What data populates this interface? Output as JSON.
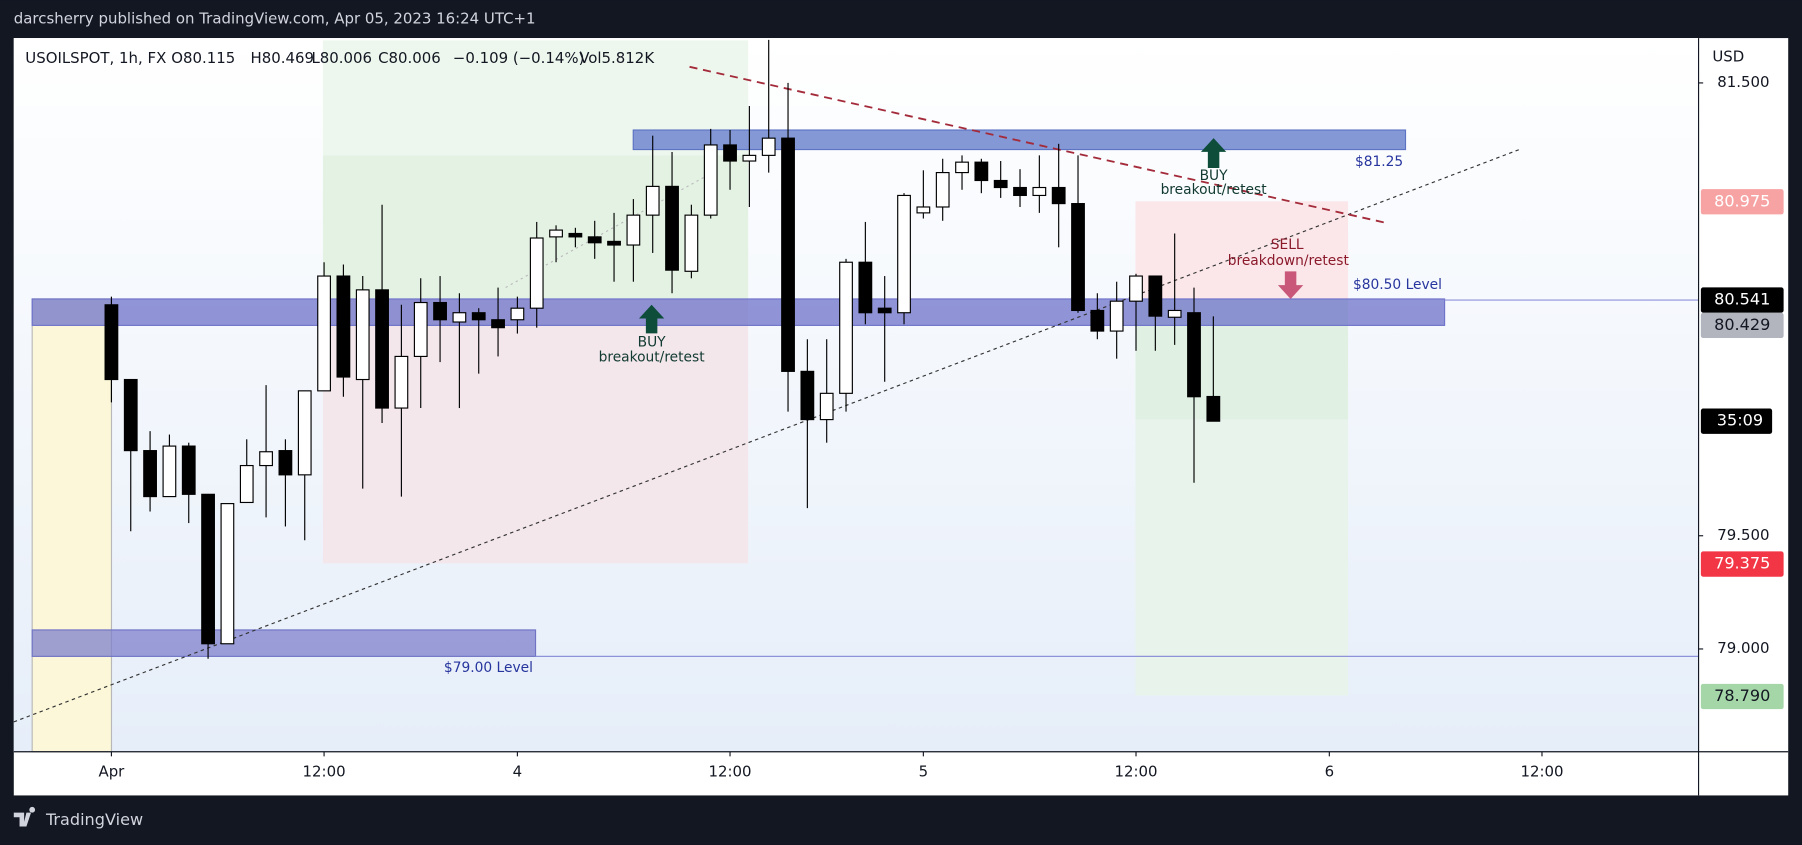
{
  "header": {
    "publisher": "darcsherry published on TradingView.com, Apr 05, 2023 16:24 UTC+1"
  },
  "chart_data": {
    "type": "candlestick",
    "legend": [
      "USOILSPOT, 1h, FX",
      "O80.115",
      "H80.469",
      "L80.006",
      "C80.006",
      "−0.109 (−0.14%)",
      "Vol5.812K"
    ],
    "open": [
      80.52,
      80.19,
      79.876,
      79.673,
      79.896,
      79.683,
      79.023,
      79.647,
      79.81,
      79.876,
      79.769,
      80.14,
      80.647,
      80.19,
      80.586,
      80.064,
      80.292,
      80.53,
      80.444,
      80.485,
      80.454,
      80.454,
      80.505,
      80.82,
      80.835,
      80.82,
      80.8,
      80.784,
      80.916,
      81.043,
      80.668,
      80.916,
      81.226,
      81.155,
      81.18,
      81.256,
      80.226,
      80.013,
      80.129,
      80.708,
      80.505,
      80.485,
      80.926,
      80.952,
      81.104,
      81.15,
      81.069,
      81.038,
      81.003,
      81.038,
      80.967,
      80.495,
      80.404,
      80.536,
      80.647,
      80.465,
      80.485,
      80.115
    ],
    "high": [
      80.556,
      80.19,
      79.962,
      79.947,
      79.911,
      79.683,
      79.642,
      79.926,
      80.165,
      79.926,
      80.14,
      80.708,
      80.698,
      80.647,
      80.962,
      80.52,
      80.637,
      80.647,
      80.571,
      80.505,
      80.596,
      80.556,
      80.886,
      80.871,
      80.86,
      80.891,
      80.926,
      80.987,
      81.267,
      81.195,
      80.962,
      81.297,
      81.292,
      81.398,
      81.69,
      81.5,
      80.368,
      80.368,
      80.723,
      80.886,
      80.647,
      81.013,
      81.114,
      81.165,
      81.18,
      81.165,
      81.155,
      81.119,
      81.18,
      81.231,
      81.18,
      80.571,
      80.622,
      80.657,
      80.647,
      80.835,
      80.596,
      80.469
    ],
    "low": [
      80.089,
      79.52,
      79.607,
      79.673,
      79.556,
      78.957,
      79.023,
      79.647,
      79.581,
      79.541,
      79.48,
      80.14,
      80.114,
      79.708,
      79.998,
      79.673,
      80.064,
      80.267,
      80.064,
      80.216,
      80.292,
      80.393,
      80.419,
      80.708,
      80.774,
      80.723,
      80.622,
      80.622,
      80.749,
      80.571,
      80.637,
      80.901,
      81.028,
      80.952,
      81.104,
      80.048,
      79.622,
      79.911,
      80.048,
      80.434,
      80.18,
      80.434,
      80.901,
      80.891,
      81.028,
      81.013,
      80.992,
      80.952,
      80.926,
      80.774,
      80.485,
      80.368,
      80.282,
      80.317,
      80.317,
      80.343,
      79.734,
      80.006
    ],
    "close": [
      80.19,
      79.876,
      79.673,
      79.896,
      79.683,
      79.023,
      79.642,
      79.81,
      79.871,
      79.769,
      80.14,
      80.647,
      80.201,
      80.586,
      80.064,
      80.292,
      80.53,
      80.454,
      80.485,
      80.454,
      80.419,
      80.505,
      80.815,
      80.85,
      80.82,
      80.794,
      80.784,
      80.916,
      81.043,
      80.673,
      80.916,
      81.226,
      81.155,
      81.18,
      81.256,
      80.226,
      80.013,
      80.129,
      80.708,
      80.485,
      80.485,
      81.003,
      80.952,
      81.104,
      81.15,
      81.069,
      81.038,
      81.003,
      81.038,
      80.967,
      80.495,
      80.404,
      80.536,
      80.647,
      80.47,
      80.495,
      80.114,
      80.006
    ],
    "up_color": "#ffffff",
    "down_color": "#000000",
    "xlim": [
      -5.05,
      82.1
    ],
    "xticks": [
      {
        "value": 0,
        "label": "Apr"
      },
      {
        "value": 11,
        "label": "12:00"
      },
      {
        "value": 21,
        "label": "4"
      },
      {
        "value": 32,
        "label": "12:00"
      },
      {
        "value": 42,
        "label": "5"
      },
      {
        "value": 53,
        "label": "12:00"
      },
      {
        "value": 63,
        "label": "6"
      },
      {
        "value": 74,
        "label": "12:00"
      }
    ],
    "ylim": [
      78.546,
      81.698
    ],
    "yticks": [
      {
        "value": 81.5,
        "label": "81.500"
      },
      {
        "value": 79.5,
        "label": "79.500"
      },
      {
        "value": 79.0,
        "label": "79.000"
      }
    ],
    "y_label": "USD",
    "price_labels": [
      {
        "value": 80.975,
        "label": "80.975",
        "color": "#f7a3a3",
        "text_color": "#ffffff"
      },
      {
        "value": 80.541,
        "label": "80.541",
        "color": "#000000",
        "text_color": "#ffffff"
      },
      {
        "value": 80.429,
        "label": "80.429",
        "color": "#b2b5be",
        "text_color": "#131722"
      },
      {
        "value": 79.375,
        "label": "79.375",
        "color": "#f23645",
        "text_color": "#ffffff"
      },
      {
        "value": 78.79,
        "label": "78.790",
        "color": "#a5d6a7",
        "text_color": "#131722"
      }
    ],
    "countdown": "35:09",
    "annotations": [
      "BUY",
      "breakout/retest",
      "BUY",
      "breakout/retest",
      "SELL",
      "breakdown/retest",
      "$80.50 Level",
      "$81.25",
      "$79.00 Level"
    ]
  },
  "footer": {
    "brand": "TradingView"
  }
}
